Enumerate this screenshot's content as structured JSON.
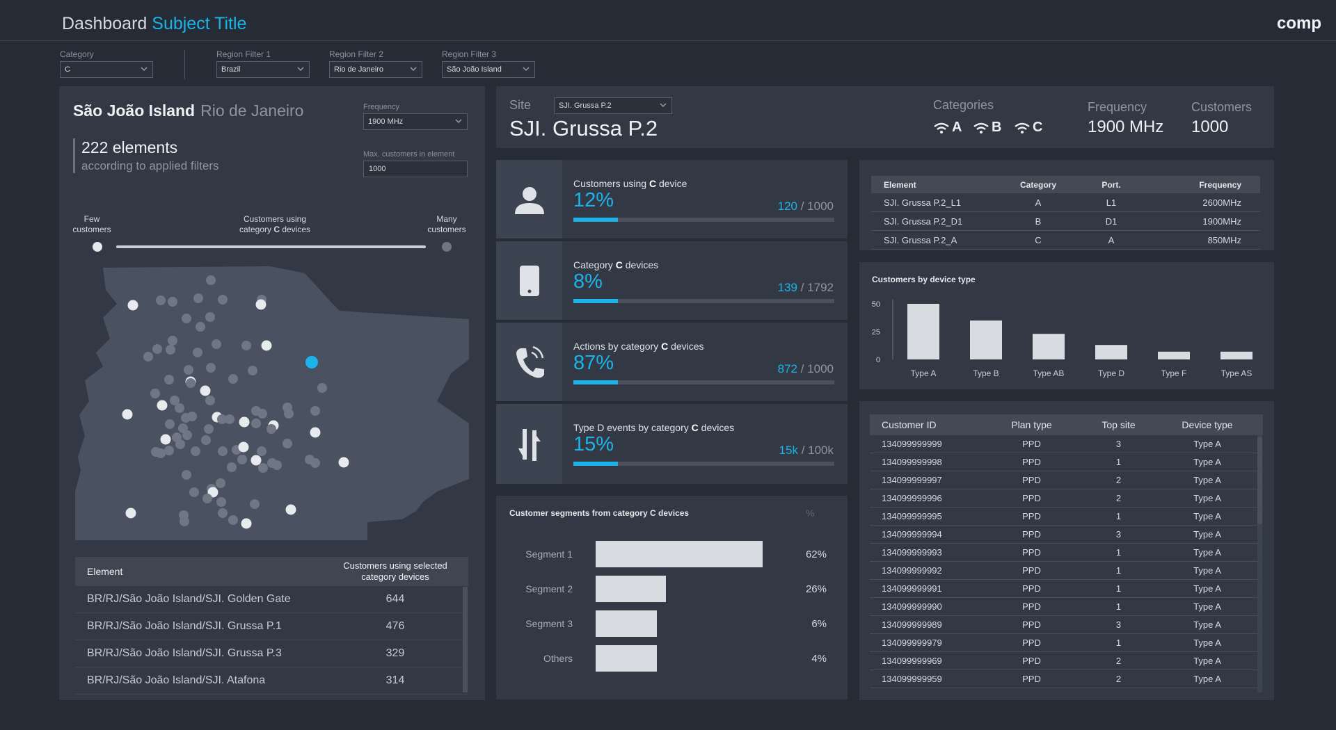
{
  "header": {
    "title": "Dashboard",
    "subtitle": "Subject Title",
    "brand": "comp"
  },
  "filters": [
    {
      "label": "Category",
      "value": "C"
    },
    {
      "label": "Region Filter 1",
      "value": "Brazil"
    },
    {
      "label": "Region Filter 2",
      "value": "Rio de Janeiro"
    },
    {
      "label": "Region Filter 3",
      "value": "São João Island"
    }
  ],
  "left_panel": {
    "title": "São João Island",
    "subtitle": "Rio de Janeiro",
    "elements_count": "222 elements",
    "elements_note": "according to applied filters",
    "frequency_label": "Frequency",
    "frequency_value": "1900 MHz",
    "max_customers_label": "Max. customers in element",
    "max_customers_value": "1000",
    "slider": {
      "few_label": "Few\ncustomers",
      "center_label_prefix": "Customers using",
      "center_label_line2_pre": "category ",
      "center_label_bold": "C",
      "center_label_line2_post": " devices",
      "many_label": "Many\ncustomers"
    },
    "table": {
      "headers": [
        "Element",
        "Customers using selected\ncategory devices"
      ],
      "rows": [
        [
          "BR/RJ/São João Island/SJI. Golden Gate",
          "644"
        ],
        [
          "BR/RJ/São João Island/SJI. Grussa P.1",
          "476"
        ],
        [
          "BR/RJ/São João Island/SJI. Grussa P.3",
          "329"
        ],
        [
          "BR/RJ/São João Island/SJI. Atafona",
          "314"
        ]
      ]
    }
  },
  "site": {
    "label": "Site",
    "selector_value": "SJI. Grussa P.2",
    "name": "SJI. Grussa P.2",
    "categories_label": "Categories",
    "categories": [
      "A",
      "B",
      "C"
    ],
    "frequency_label": "Frequency",
    "frequency_value": "1900 MHz",
    "customers_label": "Customers",
    "customers_value": "1000"
  },
  "kpis": [
    {
      "icon": "user-icon",
      "title_pre": "Customers using ",
      "title_bold": "C",
      "title_post": " device",
      "percent": "12%",
      "ratio_num": "120",
      "ratio_den": "/ 1000",
      "fill": 0.17
    },
    {
      "icon": "phone-device-icon",
      "title_pre": "Category ",
      "title_bold": "C",
      "title_post": " devices",
      "percent": "8%",
      "ratio_num": "139",
      "ratio_den": "/ 1792",
      "fill": 0.17
    },
    {
      "icon": "phone-call-icon",
      "title_pre": "Actions by category ",
      "title_bold": "C",
      "title_post": " devices",
      "percent": "87%",
      "ratio_num": "872",
      "ratio_den": "/ 1000",
      "fill": 0.17
    },
    {
      "icon": "transfer-arrows-icon",
      "title_pre": "Type D events by category ",
      "title_bold": "C",
      "title_post": " devices",
      "percent": "15%",
      "ratio_num": "15k",
      "ratio_den": "/ 100k",
      "fill": 0.17
    }
  ],
  "segments": {
    "title": "Customer segments from category C devices",
    "unit": "%",
    "rows": [
      {
        "label": "Segment 1",
        "value": 62,
        "display": "62%"
      },
      {
        "label": "Segment 2",
        "value": 26,
        "display": "26%"
      },
      {
        "label": "Segment 3",
        "value": 6,
        "display": "6%"
      },
      {
        "label": "Others",
        "value": 4,
        "display": "4%"
      }
    ]
  },
  "elements_table": {
    "headers": [
      "Element",
      "Category",
      "Port.",
      "Frequency"
    ],
    "rows": [
      [
        "SJI. Grussa P.2_L1",
        "A",
        "L1",
        "2600MHz"
      ],
      [
        "SJI. Grussa P.2_D1",
        "B",
        "D1",
        "1900MHz"
      ],
      [
        "SJI. Grussa P.2_A",
        "C",
        "A",
        "850MHz"
      ]
    ]
  },
  "chart_data": {
    "type": "bar",
    "title": "Customers by device type",
    "categories": [
      "Type A",
      "Type B",
      "Type AB",
      "Type D",
      "Type F",
      "Type AS"
    ],
    "values": [
      50,
      35,
      23,
      13,
      7,
      7
    ],
    "ylim": [
      0,
      50
    ],
    "yticks": [
      "0",
      "25",
      "50"
    ],
    "xlabel": "",
    "ylabel": ""
  },
  "customers_table": {
    "headers": [
      "Customer ID",
      "Plan type",
      "Top site",
      "Device type"
    ],
    "rows": [
      [
        "134099999999",
        "PPD",
        "3",
        "Type A"
      ],
      [
        "134099999998",
        "PPD",
        "1",
        "Type A"
      ],
      [
        "134099999997",
        "PPD",
        "2",
        "Type A"
      ],
      [
        "134099999996",
        "PPD",
        "2",
        "Type A"
      ],
      [
        "134099999995",
        "PPD",
        "1",
        "Type A"
      ],
      [
        "134099999994",
        "PPD",
        "3",
        "Type A"
      ],
      [
        "134099999993",
        "PPD",
        "1",
        "Type A"
      ],
      [
        "134099999992",
        "PPD",
        "1",
        "Type A"
      ],
      [
        "134099999991",
        "PPD",
        "1",
        "Type A"
      ],
      [
        "134099999990",
        "PPD",
        "1",
        "Type A"
      ],
      [
        "134099999989",
        "PPD",
        "3",
        "Type A"
      ],
      [
        "134099999979",
        "PPD",
        "1",
        "Type A"
      ],
      [
        "134099999969",
        "PPD",
        "2",
        "Type A"
      ],
      [
        "134099999959",
        "PPD",
        "2",
        "Type A"
      ]
    ]
  },
  "colors": {
    "accent": "#1cb4e8",
    "background": "#262c36",
    "panel": "#323945"
  }
}
